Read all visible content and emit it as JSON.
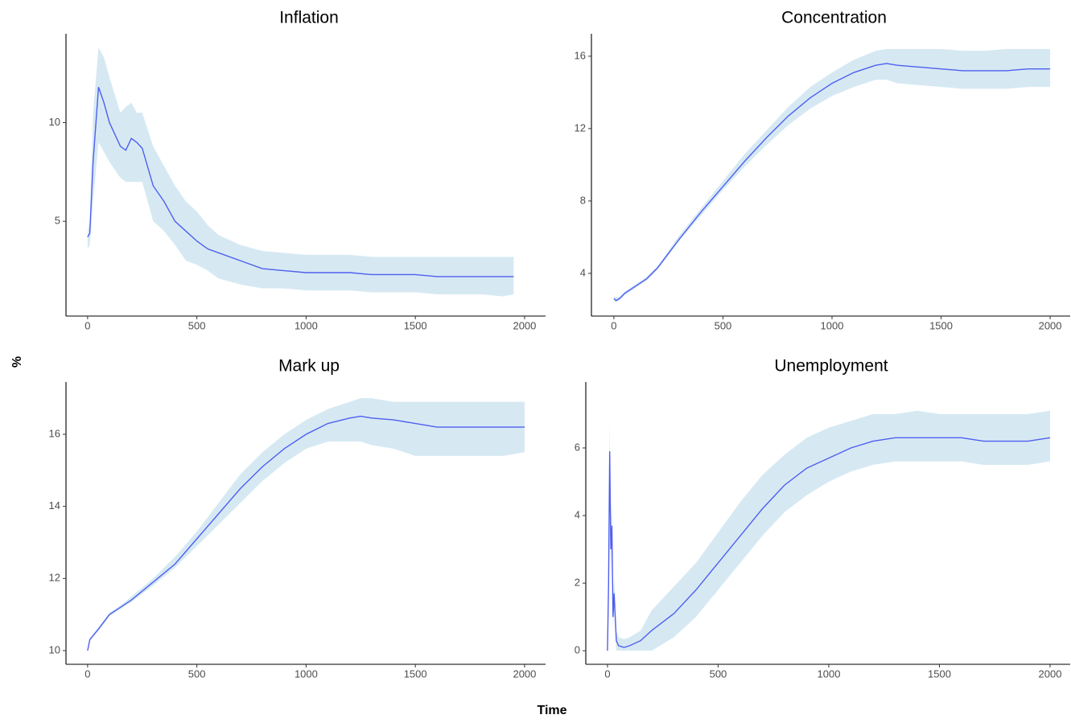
{
  "x_label": "Time",
  "y_label": "%",
  "chart_data": [
    {
      "type": "line",
      "title": "Inflation",
      "color": "#4f5ff0",
      "band_color": "#d6e9f3",
      "x": [
        0,
        10,
        25,
        50,
        75,
        100,
        150,
        175,
        200,
        225,
        250,
        300,
        350,
        400,
        450,
        500,
        550,
        600,
        700,
        800,
        900,
        1000,
        1100,
        1200,
        1300,
        1400,
        1500,
        1600,
        1700,
        1800,
        1900,
        1950
      ],
      "values": [
        4.2,
        4.4,
        8,
        11.8,
        11,
        10,
        8.8,
        8.6,
        9.2,
        9,
        8.7,
        6.8,
        6,
        5,
        4.5,
        4,
        3.6,
        3.4,
        3,
        2.6,
        2.5,
        2.4,
        2.4,
        2.4,
        2.3,
        2.3,
        2.3,
        2.2,
        2.2,
        2.2,
        2.2,
        2.2
      ],
      "band_lower": [
        3.6,
        3.8,
        6,
        9,
        8.5,
        8,
        7.2,
        7,
        7,
        7,
        7,
        5,
        4.5,
        3.8,
        3,
        2.8,
        2.5,
        2.1,
        1.8,
        1.6,
        1.6,
        1.5,
        1.5,
        1.5,
        1.4,
        1.4,
        1.4,
        1.3,
        1.3,
        1.3,
        1.2,
        1.3
      ],
      "band_upper": [
        4.5,
        5,
        10.5,
        13.8,
        13.3,
        12.3,
        10.5,
        10.8,
        11,
        10.5,
        10.5,
        8.8,
        7.8,
        6.8,
        6,
        5.5,
        4.8,
        4.3,
        3.8,
        3.5,
        3.4,
        3.3,
        3.3,
        3.3,
        3.2,
        3.2,
        3.2,
        3.2,
        3.2,
        3.2,
        3.2,
        3.2
      ],
      "xlim": [
        -99,
        2096
      ],
      "ylim": [
        0.2,
        14.5
      ],
      "xticks": [
        0,
        500,
        1000,
        1500,
        2000
      ],
      "yticks": [
        5,
        10
      ]
    },
    {
      "type": "line",
      "title": "Concentration",
      "color": "#4f5ff0",
      "band_color": "#d6e9f3",
      "x": [
        0,
        10,
        25,
        50,
        100,
        150,
        200,
        300,
        400,
        500,
        600,
        700,
        800,
        900,
        1000,
        1100,
        1200,
        1250,
        1300,
        1400,
        1500,
        1600,
        1700,
        1800,
        1900,
        2000
      ],
      "values": [
        2.6,
        2.5,
        2.6,
        2.9,
        3.3,
        3.7,
        4.3,
        5.9,
        7.4,
        8.8,
        10.2,
        11.5,
        12.7,
        13.7,
        14.5,
        15.1,
        15.5,
        15.6,
        15.5,
        15.4,
        15.3,
        15.2,
        15.2,
        15.2,
        15.3,
        15.3
      ],
      "band_lower": [
        2.5,
        2.4,
        2.5,
        2.8,
        3.2,
        3.6,
        4.2,
        5.8,
        7.2,
        8.6,
        9.9,
        11.1,
        12.2,
        13.1,
        13.8,
        14.3,
        14.7,
        14.7,
        14.5,
        14.4,
        14.3,
        14.2,
        14.2,
        14.2,
        14.3,
        14.3
      ],
      "band_upper": [
        2.7,
        2.7,
        2.7,
        3,
        3.4,
        3.8,
        4.4,
        6.1,
        7.6,
        9.1,
        10.6,
        11.9,
        13.2,
        14.3,
        15.1,
        15.8,
        16.3,
        16.4,
        16.4,
        16.4,
        16.4,
        16.3,
        16.3,
        16.4,
        16.4,
        16.4
      ],
      "xlim": [
        -103,
        2092
      ],
      "ylim": [
        1.64,
        17.24
      ],
      "xticks": [
        0,
        500,
        1000,
        1500,
        2000
      ],
      "yticks": [
        4,
        8,
        12,
        16
      ]
    },
    {
      "type": "line",
      "title": "Mark up",
      "color": "#4f5ff0",
      "band_color": "#d6e9f3",
      "x": [
        0,
        10,
        50,
        100,
        150,
        200,
        300,
        400,
        500,
        600,
        700,
        800,
        900,
        1000,
        1100,
        1200,
        1250,
        1300,
        1400,
        1500,
        1600,
        1700,
        1800,
        1900,
        2000
      ],
      "values": [
        10,
        10.3,
        10.6,
        11,
        11.2,
        11.4,
        11.9,
        12.4,
        13.1,
        13.8,
        14.5,
        15.1,
        15.6,
        16,
        16.3,
        16.45,
        16.5,
        16.45,
        16.4,
        16.3,
        16.2,
        16.2,
        16.2,
        16.2,
        16.2
      ],
      "band_lower": [
        10,
        10.3,
        10.55,
        10.95,
        11.15,
        11.35,
        11.8,
        12.3,
        12.9,
        13.5,
        14.1,
        14.7,
        15.2,
        15.6,
        15.8,
        15.8,
        15.8,
        15.7,
        15.6,
        15.4,
        15.4,
        15.4,
        15.4,
        15.4,
        15.5
      ],
      "band_upper": [
        10,
        10.35,
        10.65,
        11.05,
        11.25,
        11.5,
        12,
        12.6,
        13.3,
        14.1,
        14.9,
        15.5,
        16,
        16.4,
        16.7,
        16.9,
        17,
        17,
        16.9,
        16.9,
        16.9,
        16.9,
        16.9,
        16.9,
        16.9
      ],
      "xlim": [
        -99,
        2096
      ],
      "ylim": [
        9.62,
        17.45
      ],
      "xticks": [
        0,
        500,
        1000,
        1500,
        2000
      ],
      "yticks": [
        10,
        12,
        14,
        16
      ]
    },
    {
      "type": "line",
      "title": "Unemployment",
      "color": "#4f5ff0",
      "band_color": "#d6e9f3",
      "x": [
        0,
        5,
        10,
        15,
        20,
        25,
        30,
        40,
        50,
        75,
        100,
        150,
        200,
        300,
        400,
        500,
        600,
        700,
        800,
        900,
        1000,
        1100,
        1200,
        1300,
        1400,
        1500,
        1600,
        1700,
        1800,
        1900,
        2000
      ],
      "values": [
        0,
        2,
        5.9,
        3,
        3.7,
        1,
        1.7,
        0.3,
        0.15,
        0.1,
        0.15,
        0.3,
        0.6,
        1.1,
        1.8,
        2.6,
        3.4,
        4.2,
        4.9,
        5.4,
        5.7,
        6,
        6.2,
        6.3,
        6.3,
        6.3,
        6.3,
        6.2,
        6.2,
        6.2,
        6.3
      ],
      "band_lower": [
        0,
        1.5,
        5,
        2.3,
        3,
        0.6,
        1.2,
        0,
        0,
        0,
        0,
        0,
        0,
        0.4,
        1,
        1.8,
        2.6,
        3.4,
        4.1,
        4.6,
        5,
        5.3,
        5.5,
        5.6,
        5.6,
        5.6,
        5.6,
        5.5,
        5.5,
        5.5,
        5.6
      ],
      "band_upper": [
        0,
        2.5,
        6.8,
        3.7,
        4.3,
        1.5,
        2.2,
        0.6,
        0.4,
        0.35,
        0.4,
        0.6,
        1.2,
        1.9,
        2.6,
        3.5,
        4.4,
        5.2,
        5.8,
        6.3,
        6.6,
        6.8,
        7,
        7,
        7.1,
        7,
        7,
        7,
        7,
        7,
        7.1
      ],
      "xlim": [
        -98,
        2091
      ],
      "ylim": [
        -0.4,
        7.95
      ],
      "xticks": [
        0,
        500,
        1000,
        1500,
        2000
      ],
      "yticks": [
        0,
        2,
        4,
        6
      ]
    }
  ]
}
